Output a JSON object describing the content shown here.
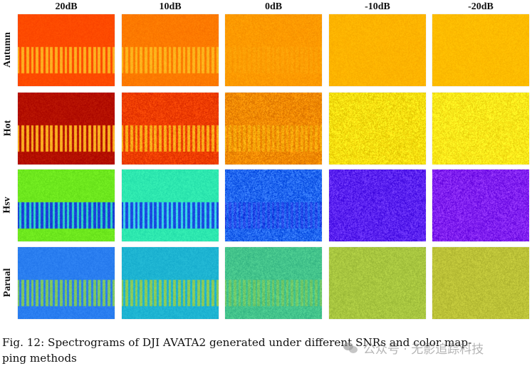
{
  "figure": {
    "columns": [
      "20dB",
      "10dB",
      "0dB",
      "-10dB",
      "-20dB"
    ],
    "rows": [
      "Autumn",
      "Hot",
      "Hsv",
      "Parual"
    ],
    "panels": [
      [
        {
          "bg": "#ff4a00",
          "burst": "#ffb020",
          "noise": 0.06,
          "contrast": 1.0
        },
        {
          "bg": "#ff7a00",
          "burst": "#ffb51c",
          "noise": 0.08,
          "contrast": 1.0
        },
        {
          "bg": "#ff9a00",
          "burst": "#ffae10",
          "noise": 0.1,
          "contrast": 0.35
        },
        {
          "bg": "#ffb400",
          "burst": "#ffb400",
          "noise": 0.08,
          "contrast": 0.0
        },
        {
          "bg": "#ffbc00",
          "burst": "#ffbc00",
          "noise": 0.08,
          "contrast": 0.0
        }
      ],
      [
        {
          "bg": "#b40f00",
          "burst": "#ffb020",
          "noise": 0.1,
          "contrast": 1.0
        },
        {
          "bg": "#ee3d00",
          "burst": "#ffae1a",
          "noise": 0.18,
          "contrast": 1.0
        },
        {
          "bg": "#f28a00",
          "burst": "#ffbc10",
          "noise": 0.25,
          "contrast": 0.6
        },
        {
          "bg": "#fadf10",
          "burst": "#fadf10",
          "noise": 0.28,
          "contrast": 0.0
        },
        {
          "bg": "#ffe81a",
          "burst": "#ffe81a",
          "noise": 0.25,
          "contrast": 0.0
        }
      ],
      [
        {
          "bg": "#6ee81e",
          "burst": "#1a3fd8",
          "gap": "#2cd6c8",
          "noise": 0.1,
          "contrast": 1.0
        },
        {
          "bg": "#2ee8b0",
          "burst": "#1a48e0",
          "gap": "#38d8e8",
          "noise": 0.1,
          "contrast": 1.0
        },
        {
          "bg": "#2066f0",
          "burst": "#2d3ae6",
          "noise": 0.35,
          "contrast": 0.6
        },
        {
          "bg": "#5a22f0",
          "burst": "#5a22f0",
          "noise": 0.3,
          "contrast": 0.0
        },
        {
          "bg": "#8020f0",
          "burst": "#8020f0",
          "noise": 0.3,
          "contrast": 0.0
        }
      ],
      [
        {
          "bg": "#2a7ef0",
          "burst": "#7ec860",
          "noise": 0.08,
          "contrast": 1.0
        },
        {
          "bg": "#1eb4d2",
          "burst": "#8ccc58",
          "noise": 0.08,
          "contrast": 1.0
        },
        {
          "bg": "#44c48c",
          "burst": "#8ccc50",
          "noise": 0.15,
          "contrast": 0.6
        },
        {
          "bg": "#a8c640",
          "burst": "#a8c640",
          "noise": 0.15,
          "contrast": 0.0
        },
        {
          "bg": "#bcc238",
          "burst": "#bcc238",
          "noise": 0.15,
          "contrast": 0.0
        }
      ]
    ]
  },
  "caption": {
    "text": "Fig. 12: Spectrograms of DJI AVATA2 generated under different SNRs and color mapping methods",
    "line1": "Fig. 12: Spectrograms of DJI AVATA2 generated under different SNRs and color map-",
    "line2": "ping methods"
  },
  "watermark": {
    "text": "公众号 · 无影追踪科技"
  }
}
